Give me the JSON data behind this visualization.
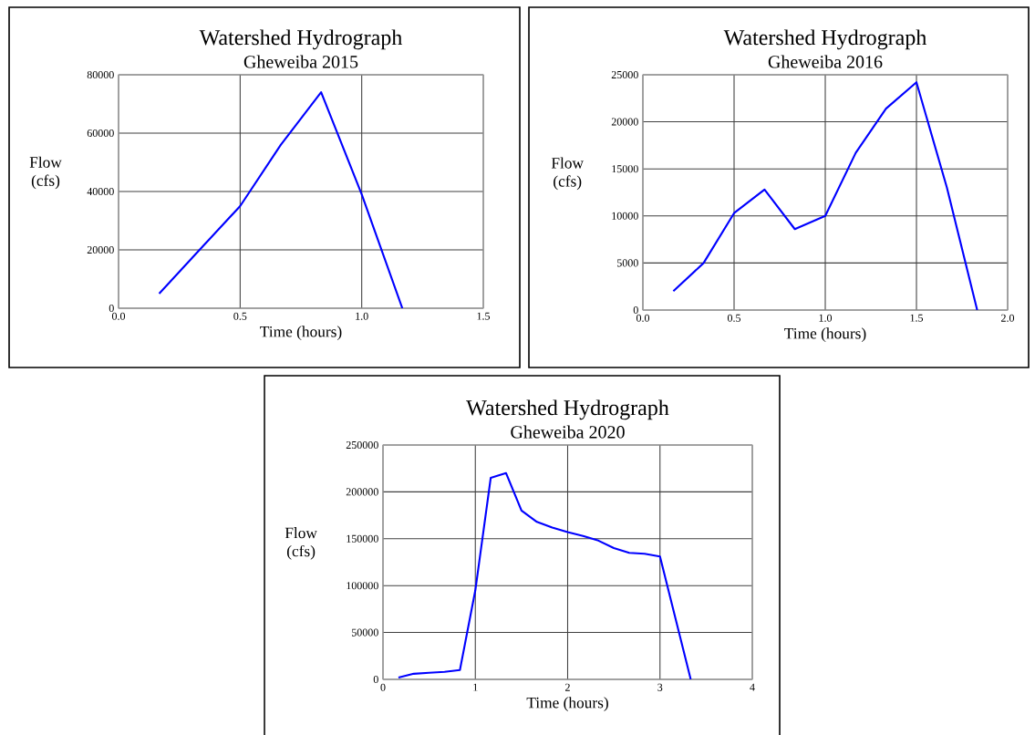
{
  "chart_data": [
    {
      "type": "line",
      "title": "Watershed Hydrograph",
      "subtitle": "Gheweiba 2015",
      "xlabel": "Time (hours)",
      "ylabel": "Flow (cfs)",
      "color": "#0000ff",
      "grid": true,
      "x": [
        0.167,
        0.333,
        0.5,
        0.667,
        0.833,
        1.0,
        1.167
      ],
      "values": [
        5000,
        20000,
        35000,
        56000,
        74000,
        39000,
        0
      ],
      "xlim": [
        0,
        1.5
      ],
      "ylim": [
        0,
        80000
      ],
      "xticks": [
        {
          "value": 0,
          "label": "0.0"
        },
        {
          "value": 0.5,
          "label": "0.5"
        },
        {
          "value": 1,
          "label": "1.0"
        },
        {
          "value": 1.5,
          "label": "1.5"
        }
      ],
      "yticks": [
        0,
        20000,
        40000,
        60000,
        80000
      ]
    },
    {
      "type": "line",
      "title": "Watershed Hydrograph",
      "subtitle": "Gheweiba 2016",
      "xlabel": "Time (hours)",
      "ylabel": "Flow (cfs)",
      "color": "#0000ff",
      "grid": true,
      "x": [
        0.167,
        0.333,
        0.5,
        0.667,
        0.833,
        1.0,
        1.167,
        1.333,
        1.5,
        1.667,
        1.833
      ],
      "values": [
        2000,
        5000,
        10300,
        12800,
        8600,
        10000,
        16700,
        21400,
        24200,
        13000,
        0
      ],
      "xlim": [
        0,
        2.0
      ],
      "ylim": [
        0,
        25000
      ],
      "xticks": [
        {
          "value": 0,
          "label": "0.0"
        },
        {
          "value": 0.5,
          "label": "0.5"
        },
        {
          "value": 1,
          "label": "1.0"
        },
        {
          "value": 1.5,
          "label": "1.5"
        },
        {
          "value": 2,
          "label": "2.0"
        }
      ],
      "yticks": [
        0,
        5000,
        10000,
        15000,
        20000,
        25000
      ]
    },
    {
      "type": "line",
      "title": "Watershed Hydrograph",
      "subtitle": "Gheweiba 2020",
      "xlabel": "Time (hours)",
      "ylabel": "Flow (cfs)",
      "color": "#0000ff",
      "grid": true,
      "x": [
        0.167,
        0.333,
        0.5,
        0.667,
        0.833,
        1.0,
        1.167,
        1.333,
        1.5,
        1.667,
        1.833,
        2.0,
        2.167,
        2.333,
        2.5,
        2.667,
        2.833,
        3.0,
        3.333
      ],
      "values": [
        2000,
        6000,
        7000,
        8000,
        10000,
        95000,
        215000,
        220000,
        180000,
        168000,
        162000,
        157000,
        153000,
        148000,
        140000,
        135000,
        134000,
        131000,
        0
      ],
      "xlim": [
        0,
        4
      ],
      "ylim": [
        0,
        250000
      ],
      "xticks": [
        0,
        1,
        2,
        3,
        4
      ],
      "yticks": [
        0,
        50000,
        100000,
        150000,
        200000,
        250000
      ]
    }
  ]
}
